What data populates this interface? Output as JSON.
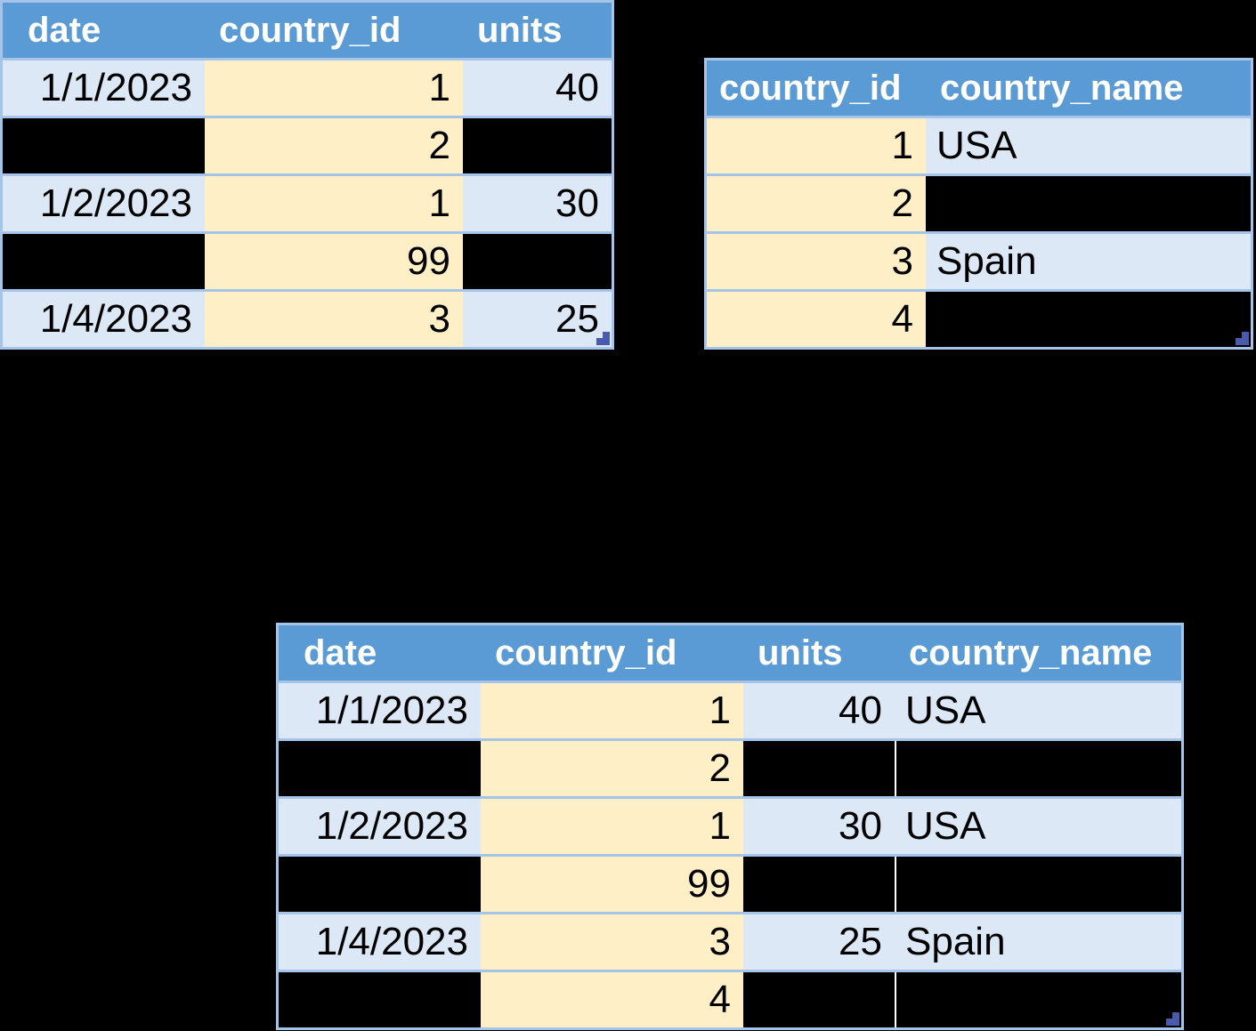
{
  "page": {
    "background": "#000000"
  },
  "colors": {
    "header_bg": "#5B9BD5",
    "header_text": "#FFFFFF",
    "row_bg": "#DCE8F5",
    "key_bg": "#FFEFC6",
    "border": "#A6C4E7",
    "data_text": "#000000",
    "empty_bg": "#000000",
    "divider": "#FFFFFF",
    "handle": "#4A5BAE"
  },
  "tables": [
    {
      "id": "sales",
      "semantic": "sales-table",
      "columns": [
        {
          "label": "date",
          "type": "date",
          "highlight": false
        },
        {
          "label": "country_id",
          "type": "number",
          "highlight": true
        },
        {
          "label": "units",
          "type": "number",
          "highlight": false
        }
      ],
      "rows": [
        [
          "1/1/2023",
          "1",
          "40"
        ],
        [
          null,
          "2",
          null
        ],
        [
          "1/2/2023",
          "1",
          "30"
        ],
        [
          null,
          "99",
          null
        ],
        [
          "1/4/2023",
          "3",
          "25"
        ]
      ],
      "resize_handle": true
    },
    {
      "id": "countries",
      "semantic": "countries-table",
      "columns": [
        {
          "label": "country_id",
          "type": "number",
          "highlight": true
        },
        {
          "label": "country_name",
          "type": "text",
          "highlight": false
        }
      ],
      "rows": [
        [
          "1",
          "USA"
        ],
        [
          "2",
          null
        ],
        [
          "3",
          "Spain"
        ],
        [
          "4",
          null
        ]
      ],
      "resize_handle": true
    },
    {
      "id": "result",
      "semantic": "joined-result-table",
      "columns": [
        {
          "label": "date",
          "type": "date",
          "highlight": false
        },
        {
          "label": "country_id",
          "type": "number",
          "highlight": true
        },
        {
          "label": "units",
          "type": "number",
          "highlight": false
        },
        {
          "label": "country_name",
          "type": "text",
          "highlight": false,
          "white_divider_when_empty": true
        }
      ],
      "rows": [
        [
          "1/1/2023",
          "1",
          "40",
          "USA"
        ],
        [
          null,
          "2",
          null,
          null
        ],
        [
          "1/2/2023",
          "1",
          "30",
          "USA"
        ],
        [
          null,
          "99",
          null,
          null
        ],
        [
          "1/4/2023",
          "3",
          "25",
          "Spain"
        ],
        [
          null,
          "4",
          null,
          null
        ]
      ],
      "resize_handle": true
    }
  ]
}
